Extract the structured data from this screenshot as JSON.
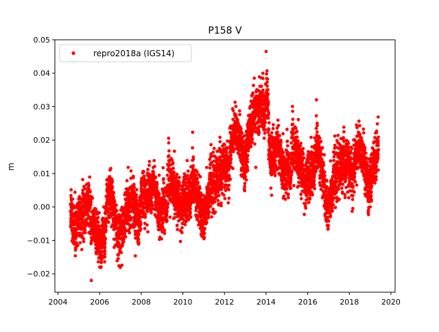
{
  "chart_data": {
    "type": "scatter",
    "title": "P158 V",
    "xlabel": "",
    "ylabel": "m",
    "xlim": [
      2003.85,
      2020.2
    ],
    "ylim": [
      -0.0255,
      0.05
    ],
    "xticks": [
      2004,
      2006,
      2008,
      2010,
      2012,
      2014,
      2016,
      2018,
      2020
    ],
    "yticks": [
      -0.02,
      -0.01,
      0.0,
      0.01,
      0.02,
      0.03,
      0.04,
      0.05
    ],
    "ytick_labels": [
      "−0.02",
      "−0.01",
      "0.00",
      "0.01",
      "0.02",
      "0.03",
      "0.04",
      "0.05"
    ],
    "grid": false,
    "legend": {
      "placement": "top-left",
      "entries": [
        "repro2018a (IGS14)"
      ]
    },
    "series": [
      {
        "name": "repro2018a (IGS14)",
        "color": "#ff0000",
        "note_trend_points": "approximate running mean (decimal year, m); daily points scatter around it",
        "trend": [
          [
            2004.6,
            -0.003
          ],
          [
            2005.0,
            -0.004
          ],
          [
            2005.5,
            -0.006
          ],
          [
            2006.0,
            -0.007
          ],
          [
            2006.5,
            -0.004
          ],
          [
            2007.0,
            -0.003
          ],
          [
            2007.5,
            -0.002
          ],
          [
            2008.0,
            0.0
          ],
          [
            2008.5,
            0.003
          ],
          [
            2009.0,
            0.003
          ],
          [
            2009.5,
            0.002
          ],
          [
            2010.0,
            0.004
          ],
          [
            2010.5,
            0.002
          ],
          [
            2011.0,
            0.004
          ],
          [
            2011.5,
            0.006
          ],
          [
            2012.0,
            0.013
          ],
          [
            2012.5,
            0.018
          ],
          [
            2013.0,
            0.021
          ],
          [
            2013.5,
            0.026
          ],
          [
            2014.05,
            0.033
          ],
          [
            2014.2,
            0.014
          ],
          [
            2014.5,
            0.014
          ],
          [
            2015.0,
            0.015
          ],
          [
            2015.5,
            0.011
          ],
          [
            2016.0,
            0.011
          ],
          [
            2016.5,
            0.012
          ],
          [
            2017.0,
            0.007
          ],
          [
            2017.5,
            0.01
          ],
          [
            2018.0,
            0.014
          ],
          [
            2018.5,
            0.012
          ],
          [
            2019.0,
            0.014
          ],
          [
            2019.4,
            0.014
          ]
        ],
        "seasonal_amplitude": 0.004,
        "noise_sd": 0.0035,
        "extremes": {
          "max": 0.0465,
          "max_x": 2014.0,
          "min": -0.022,
          "min_x": 2005.6
        }
      }
    ]
  }
}
